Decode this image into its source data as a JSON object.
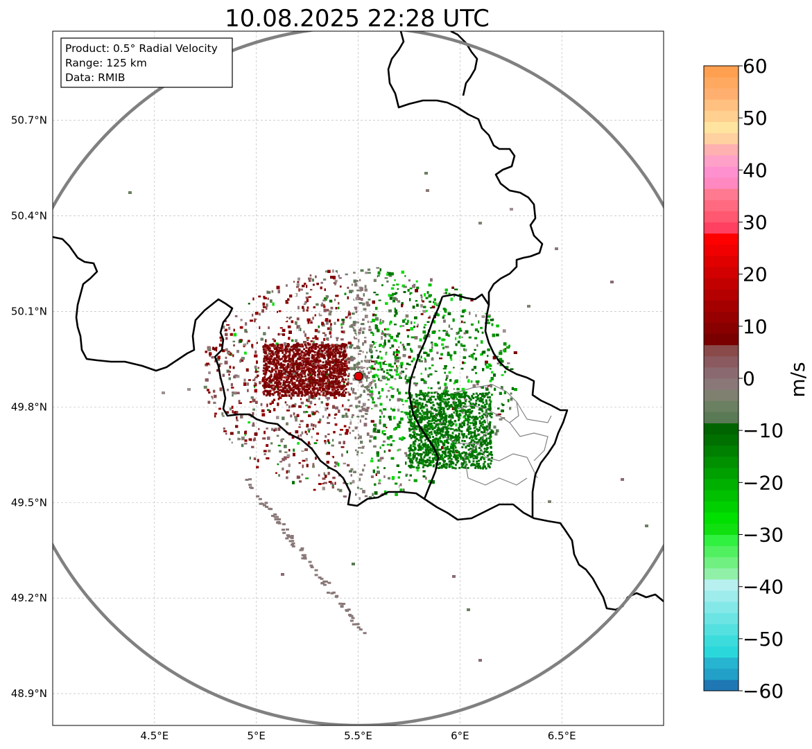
{
  "title": "10.08.2025 22:28 UTC",
  "info_box": {
    "product": "Product: 0.5° Radial Velocity",
    "range": "Range: 125 km",
    "data": "Data: RMIB"
  },
  "map": {
    "lon_range": [
      4.0,
      7.0
    ],
    "lat_range": [
      48.8,
      50.98
    ],
    "x_ticks": [
      {
        "value": 4.5,
        "label": "4.5°E"
      },
      {
        "value": 5.0,
        "label": "5°E"
      },
      {
        "value": 5.5,
        "label": "5.5°E"
      },
      {
        "value": 6.0,
        "label": "6°E"
      },
      {
        "value": 6.5,
        "label": "6.5°E"
      }
    ],
    "y_ticks": [
      {
        "value": 48.9,
        "label": "48.9°N"
      },
      {
        "value": 49.2,
        "label": "49.2°N"
      },
      {
        "value": 49.5,
        "label": "49.5°N"
      },
      {
        "value": 49.8,
        "label": "49.8°N"
      },
      {
        "value": 50.1,
        "label": "50.1°N"
      },
      {
        "value": 50.4,
        "label": "50.4°N"
      },
      {
        "value": 50.7,
        "label": "50.7°N"
      }
    ],
    "grid": true,
    "radar_site": {
      "lon": 5.505,
      "lat": 49.914
    },
    "range_ring_color": "#808080",
    "border_color": "#000000",
    "admin_border_color": "#808080",
    "site_marker_color": "#e00000"
  },
  "colorbar": {
    "label": "m/s",
    "min": -60,
    "max": 60,
    "ticks": [
      {
        "value": 60,
        "label": "60"
      },
      {
        "value": 50,
        "label": "50"
      },
      {
        "value": 40,
        "label": "40"
      },
      {
        "value": 30,
        "label": "30"
      },
      {
        "value": 20,
        "label": "20"
      },
      {
        "value": 10,
        "label": "10"
      },
      {
        "value": 0,
        "label": "0"
      },
      {
        "value": -10,
        "label": "−10"
      },
      {
        "value": -20,
        "label": "−20"
      },
      {
        "value": -30,
        "label": "−30"
      },
      {
        "value": -40,
        "label": "−40"
      },
      {
        "value": -50,
        "label": "−50"
      },
      {
        "value": -60,
        "label": "−60"
      }
    ],
    "colors": [
      "#1f77b4",
      "#22a0c8",
      "#26b4d0",
      "#2ad8dc",
      "#3cdcdc",
      "#55e0e0",
      "#6ce4e4",
      "#85e8e8",
      "#9eecec",
      "#b8f0f0",
      "#90f0a8",
      "#70f080",
      "#50f060",
      "#30f040",
      "#10e010",
      "#00e000",
      "#00d000",
      "#00c000",
      "#00b000",
      "#00a000",
      "#009000",
      "#008000",
      "#007000",
      "#006400",
      "#5a7a55",
      "#6a8060",
      "#808070",
      "#8a7878",
      "#8a6a70",
      "#8a5a60",
      "#8a4a4a",
      "#7a0000",
      "#880000",
      "#960000",
      "#a50000",
      "#b40000",
      "#c30000",
      "#d20000",
      "#e10000",
      "#f00000",
      "#ff0000",
      "#ff4060",
      "#ff5870",
      "#ff6a80",
      "#ff7a90",
      "#ff88c0",
      "#ff90d0",
      "#ffa0c8",
      "#ffb0b0",
      "#ffd0a0",
      "#ffe4a0",
      "#ffd090",
      "#ffc080",
      "#ffb070",
      "#ffa860",
      "#ffa050"
    ]
  }
}
